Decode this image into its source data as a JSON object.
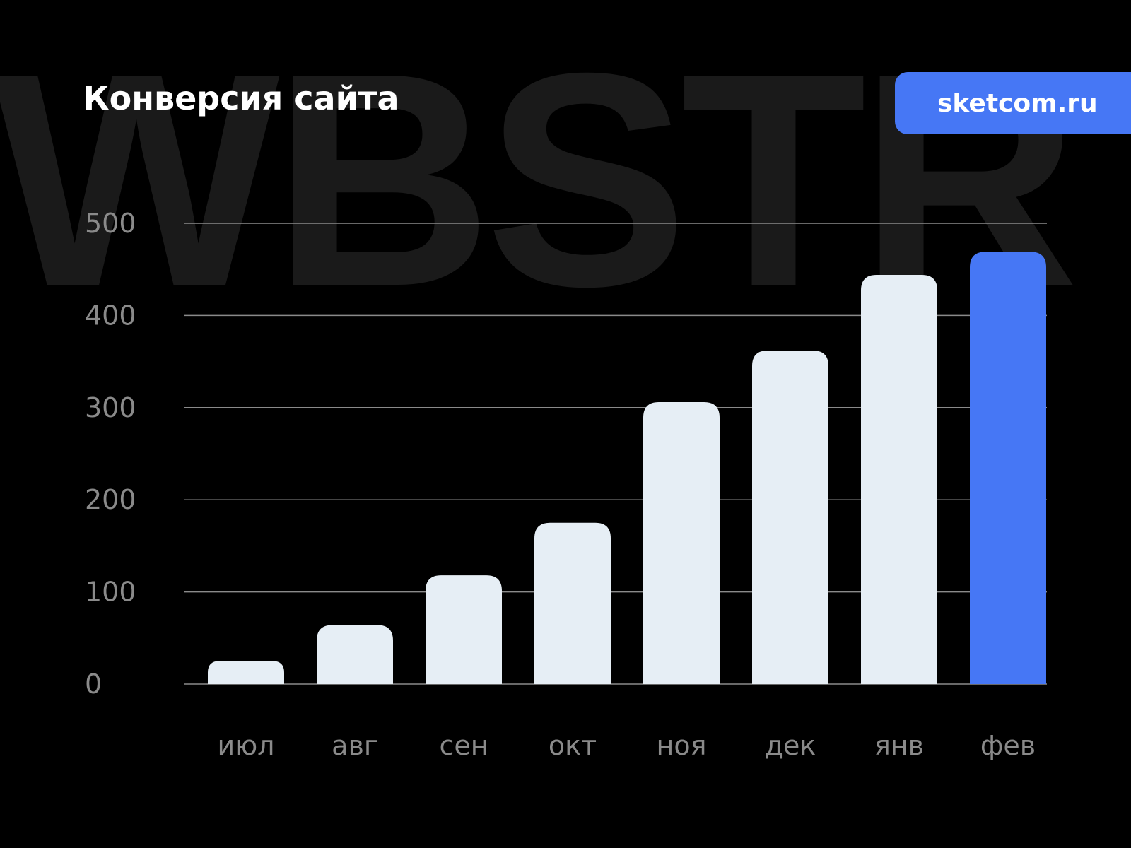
{
  "watermark": "WBSTR",
  "badge": {
    "label": "sketcom.ru",
    "color": "#4677F5"
  },
  "chart_data": {
    "type": "bar",
    "title": "Конверсия сайта",
    "categories": [
      "июл",
      "авг",
      "сен",
      "окт",
      "ноя",
      "дек",
      "янв",
      "фев"
    ],
    "values": [
      25,
      64,
      118,
      175,
      306,
      362,
      444,
      469
    ],
    "ylim": [
      0,
      500
    ],
    "yticks": [
      0,
      100,
      200,
      300,
      400,
      500
    ],
    "grid": true,
    "colors": {
      "default": "#E6EEF5",
      "highlight": "#4677F5",
      "grid": "#8a8a8a",
      "tick": "#8a8a8a"
    },
    "highlight_index": 7
  }
}
